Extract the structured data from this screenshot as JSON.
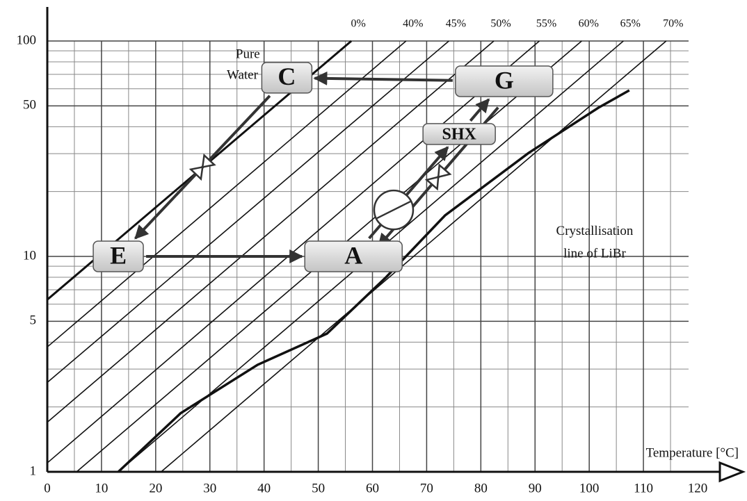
{
  "chart_data": {
    "type": "line",
    "x_label": "Temperature [°C]",
    "xlim": [
      0,
      120
    ],
    "xticks": [
      0,
      10,
      20,
      30,
      40,
      50,
      60,
      70,
      80,
      90,
      100,
      110,
      120
    ],
    "minor_xticks": [
      5,
      15,
      25,
      35,
      45,
      55,
      65,
      75,
      85,
      95,
      105,
      115
    ],
    "ylim": [
      1,
      100
    ],
    "log_y": true,
    "yticks": [
      1,
      5,
      10,
      50,
      100
    ],
    "minor_yticks": [
      2,
      3,
      4,
      6,
      7,
      8,
      9,
      20,
      30,
      40,
      60,
      70,
      80,
      90
    ],
    "grid": true,
    "series": [
      {
        "name": "0%",
        "color": "#111111",
        "x": [
          0,
          56.1
        ],
        "values": [
          6.3,
          100
        ]
      },
      {
        "name": "40%",
        "color": "#111111",
        "x": [
          0,
          66.2
        ],
        "values": [
          3.8,
          100
        ]
      },
      {
        "name": "45%",
        "color": "#111111",
        "x": [
          0,
          74.1
        ],
        "values": [
          2.6,
          100
        ]
      },
      {
        "name": "50%",
        "color": "#111111",
        "x": [
          0,
          82.4
        ],
        "values": [
          1.7,
          100
        ]
      },
      {
        "name": "55%",
        "color": "#111111",
        "x": [
          0,
          90.8
        ],
        "values": [
          1.1,
          100
        ]
      },
      {
        "name": "60%",
        "color": "#111111",
        "x": [
          5.4,
          98.6
        ],
        "values": [
          1,
          100
        ]
      },
      {
        "name": "65%",
        "color": "#111111",
        "x": [
          13.1,
          106.3
        ],
        "values": [
          1,
          100
        ]
      },
      {
        "name": "70%",
        "color": "#111111",
        "x": [
          21,
          114.2
        ],
        "values": [
          1,
          100
        ]
      }
    ],
    "crystallisation": {
      "color": "#111111",
      "x": [
        13.1,
        24.6,
        38.8,
        51.6,
        62.5,
        73.4,
        88.8,
        101.7,
        107.4
      ],
      "values": [
        1,
        1.87,
        3.14,
        4.38,
        8,
        15.5,
        30.2,
        49,
        59
      ]
    },
    "state_points": [
      {
        "label": "C",
        "x": 44.2,
        "y": 67.5
      },
      {
        "label": "G",
        "x": 84.3,
        "y": 65
      },
      {
        "label": "E",
        "x": 13.1,
        "y": 10
      },
      {
        "label": "A",
        "x": 56.5,
        "y": 10
      },
      {
        "label": "SHX",
        "x": 76,
        "y": 37
      }
    ],
    "annotations": [
      {
        "text": "Pure",
        "x": 37,
        "y": 86
      },
      {
        "text": "Water",
        "x": 36,
        "y": 69
      },
      {
        "text": "Crystallisation",
        "x": 101,
        "y": 13
      },
      {
        "text": "line of LiBr",
        "x": 101,
        "y": 10.2
      }
    ]
  }
}
